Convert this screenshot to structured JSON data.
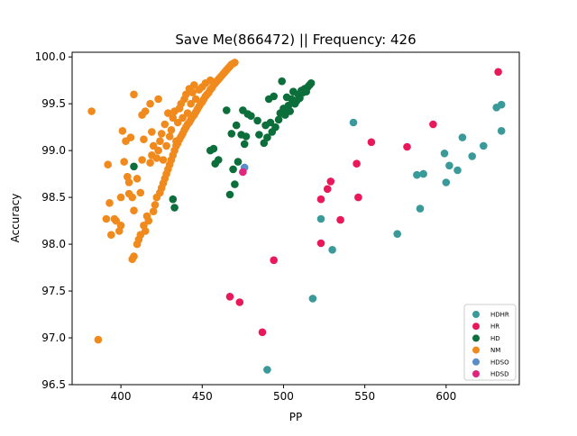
{
  "chart_data": {
    "type": "scatter",
    "title": "Save Me(866472) || Frequency: 426",
    "xlabel": "PP",
    "ylabel": "Accuracy",
    "xlim": [
      370,
      645
    ],
    "ylim": [
      96.5,
      100.05
    ],
    "xticks": [
      400,
      450,
      500,
      550,
      600
    ],
    "yticks": [
      96.5,
      97.0,
      97.5,
      98.0,
      98.5,
      99.0,
      99.5,
      100.0
    ],
    "ytick_labels": [
      "96.5",
      "97.0",
      "97.5",
      "98.0",
      "98.5",
      "99.0",
      "99.5",
      "100.0"
    ],
    "grid": false,
    "legend_position": "lower-right",
    "series": [
      {
        "name": "HDHR",
        "color": "#3a9a9a",
        "points": [
          [
            490,
            96.66
          ],
          [
            518,
            97.42
          ],
          [
            523,
            98.27
          ],
          [
            530,
            97.94
          ],
          [
            543,
            99.3
          ],
          [
            570,
            98.11
          ],
          [
            582,
            98.74
          ],
          [
            584,
            98.38
          ],
          [
            586,
            98.75
          ],
          [
            599,
            98.97
          ],
          [
            600,
            98.66
          ],
          [
            602,
            98.84
          ],
          [
            607,
            98.79
          ],
          [
            610,
            99.14
          ],
          [
            616,
            98.94
          ],
          [
            623,
            99.05
          ],
          [
            631,
            99.46
          ],
          [
            634,
            99.21
          ],
          [
            634,
            99.49
          ]
        ]
      },
      {
        "name": "HR",
        "color": "#e8185a",
        "points": [
          [
            467,
            97.44
          ],
          [
            473,
            97.38
          ],
          [
            487,
            97.06
          ],
          [
            494,
            97.83
          ],
          [
            523,
            98.01
          ],
          [
            523,
            98.48
          ],
          [
            527,
            98.59
          ],
          [
            529,
            98.67
          ],
          [
            535,
            98.26
          ],
          [
            545,
            98.86
          ],
          [
            546,
            98.5
          ],
          [
            554,
            99.09
          ],
          [
            576,
            99.04
          ],
          [
            592,
            99.28
          ],
          [
            632,
            99.84
          ]
        ]
      },
      {
        "name": "HD",
        "color": "#0c6e3a",
        "points": [
          [
            408,
            98.83
          ],
          [
            432,
            98.48
          ],
          [
            433,
            98.39
          ],
          [
            455,
            99.0
          ],
          [
            457,
            99.02
          ],
          [
            458,
            98.86
          ],
          [
            460,
            98.9
          ],
          [
            465,
            99.43
          ],
          [
            467,
            98.53
          ],
          [
            468,
            99.18
          ],
          [
            469,
            98.8
          ],
          [
            470,
            98.64
          ],
          [
            471,
            99.27
          ],
          [
            472,
            98.88
          ],
          [
            474,
            99.17
          ],
          [
            475,
            99.43
          ],
          [
            476,
            99.07
          ],
          [
            477,
            99.15
          ],
          [
            478,
            99.39
          ],
          [
            480,
            99.37
          ],
          [
            484,
            99.32
          ],
          [
            485,
            99.17
          ],
          [
            488,
            99.08
          ],
          [
            489,
            99.27
          ],
          [
            490,
            99.14
          ],
          [
            491,
            99.55
          ],
          [
            492,
            99.3
          ],
          [
            493,
            99.2
          ],
          [
            494,
            99.58
          ],
          [
            495,
            99.25
          ],
          [
            497,
            99.33
          ],
          [
            498,
            99.4
          ],
          [
            499,
            99.74
          ],
          [
            500,
            99.45
          ],
          [
            501,
            99.38
          ],
          [
            502,
            99.57
          ],
          [
            503,
            99.48
          ],
          [
            504,
            99.42
          ],
          [
            505,
            99.55
          ],
          [
            506,
            99.63
          ],
          [
            507,
            99.5
          ],
          [
            508,
            99.53
          ],
          [
            509,
            99.6
          ],
          [
            510,
            99.56
          ],
          [
            511,
            99.64
          ],
          [
            512,
            99.62
          ],
          [
            513,
            99.66
          ],
          [
            514,
            99.63
          ],
          [
            515,
            99.68
          ],
          [
            516,
            99.7
          ],
          [
            517,
            99.72
          ]
        ]
      },
      {
        "name": "NM",
        "color": "#f08a1c",
        "points": [
          [
            382,
            99.42
          ],
          [
            386,
            96.98
          ],
          [
            391,
            98.27
          ],
          [
            392,
            98.85
          ],
          [
            393,
            98.44
          ],
          [
            394,
            98.1
          ],
          [
            396,
            98.27
          ],
          [
            397,
            98.25
          ],
          [
            399,
            98.14
          ],
          [
            400,
            98.2
          ],
          [
            400,
            98.5
          ],
          [
            401,
            99.21
          ],
          [
            402,
            98.88
          ],
          [
            403,
            99.1
          ],
          [
            404,
            98.72
          ],
          [
            405,
            98.54
          ],
          [
            405,
            98.66
          ],
          [
            406,
            99.14
          ],
          [
            407,
            98.5
          ],
          [
            408,
            98.36
          ],
          [
            408,
            99.6
          ],
          [
            407,
            97.84
          ],
          [
            408,
            97.87
          ],
          [
            410,
            98.0
          ],
          [
            410,
            98.7
          ],
          [
            411,
            98.05
          ],
          [
            412,
            98.1
          ],
          [
            412,
            98.55
          ],
          [
            413,
            98.9
          ],
          [
            413,
            99.38
          ],
          [
            414,
            99.12
          ],
          [
            414,
            98.2
          ],
          [
            415,
            98.14
          ],
          [
            415,
            99.42
          ],
          [
            416,
            98.3
          ],
          [
            417,
            98.25
          ],
          [
            418,
            98.87
          ],
          [
            418,
            99.5
          ],
          [
            419,
            99.2
          ],
          [
            419,
            98.95
          ],
          [
            420,
            98.35
          ],
          [
            420,
            99.05
          ],
          [
            421,
            98.42
          ],
          [
            422,
            98.5
          ],
          [
            422,
            98.92
          ],
          [
            423,
            99.55
          ],
          [
            423,
            99.0
          ],
          [
            424,
            98.55
          ],
          [
            424,
            99.1
          ],
          [
            425,
            98.6
          ],
          [
            425,
            99.18
          ],
          [
            426,
            98.65
          ],
          [
            426,
            98.9
          ],
          [
            427,
            98.7
          ],
          [
            427,
            99.28
          ],
          [
            428,
            98.75
          ],
          [
            428,
            99.05
          ],
          [
            429,
            98.8
          ],
          [
            429,
            99.4
          ],
          [
            430,
            98.85
          ],
          [
            430,
            99.15
          ],
          [
            431,
            98.9
          ],
          [
            431,
            99.22
          ],
          [
            432,
            98.95
          ],
          [
            432,
            99.35
          ],
          [
            433,
            99.0
          ],
          [
            433,
            99.42
          ],
          [
            434,
            99.05
          ],
          [
            434,
            99.1
          ],
          [
            435,
            99.08
          ],
          [
            435,
            99.3
          ],
          [
            436,
            99.12
          ],
          [
            436,
            99.45
          ],
          [
            437,
            99.15
          ],
          [
            437,
            99.5
          ],
          [
            438,
            99.18
          ],
          [
            438,
            99.35
          ],
          [
            439,
            99.22
          ],
          [
            439,
            99.55
          ],
          [
            440,
            99.25
          ],
          [
            440,
            99.6
          ],
          [
            441,
            99.28
          ],
          [
            441,
            99.4
          ],
          [
            442,
            99.3
          ],
          [
            442,
            99.66
          ],
          [
            443,
            99.33
          ],
          [
            443,
            99.5
          ],
          [
            444,
            99.36
          ],
          [
            444,
            99.62
          ],
          [
            445,
            99.38
          ],
          [
            445,
            99.7
          ],
          [
            446,
            99.41
          ],
          [
            446,
            99.55
          ],
          [
            447,
            99.44
          ],
          [
            448,
            99.47
          ],
          [
            448,
            99.65
          ],
          [
            449,
            99.5
          ],
          [
            450,
            99.52
          ],
          [
            450,
            99.68
          ],
          [
            451,
            99.55
          ],
          [
            452,
            99.58
          ],
          [
            452,
            99.72
          ],
          [
            453,
            99.6
          ],
          [
            454,
            99.62
          ],
          [
            455,
            99.65
          ],
          [
            455,
            99.75
          ],
          [
            456,
            99.67
          ],
          [
            457,
            99.7
          ],
          [
            458,
            99.72
          ],
          [
            459,
            99.74
          ],
          [
            460,
            99.76
          ],
          [
            461,
            99.78
          ],
          [
            462,
            99.8
          ],
          [
            463,
            99.82
          ],
          [
            464,
            99.84
          ],
          [
            465,
            99.86
          ],
          [
            466,
            99.88
          ],
          [
            467,
            99.9
          ],
          [
            468,
            99.92
          ],
          [
            469,
            99.93
          ],
          [
            470,
            99.94
          ]
        ]
      },
      {
        "name": "HDSO",
        "color": "#5b8dc9",
        "points": [
          [
            476,
            98.82
          ]
        ]
      },
      {
        "name": "HDSD",
        "color": "#e0257e",
        "points": [
          [
            475,
            98.77
          ]
        ]
      }
    ]
  }
}
